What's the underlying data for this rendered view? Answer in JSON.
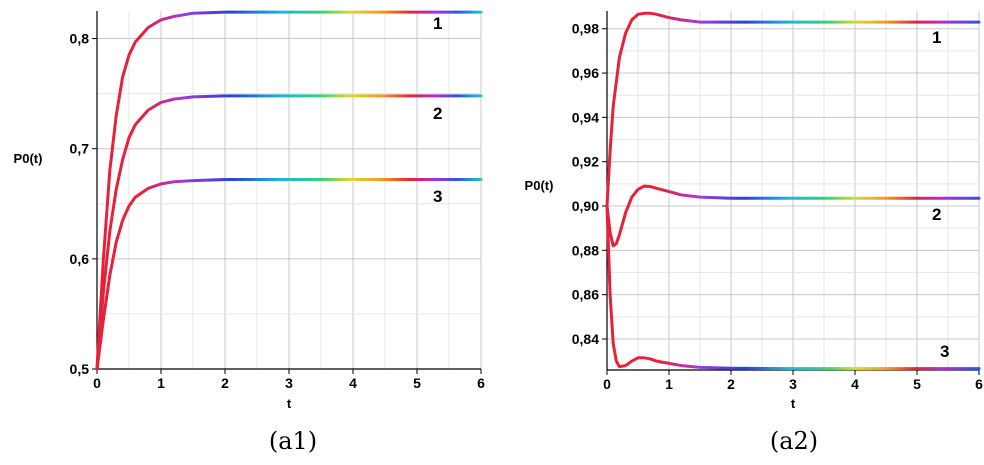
{
  "chart_data": [
    {
      "type": "line",
      "xlabel": "t",
      "ylabel": "P0(t)",
      "caption": "(a1)",
      "xlim": [
        0,
        6
      ],
      "ylim": [
        0.5,
        0.825
      ],
      "x_ticks": [
        "0",
        "1",
        "2",
        "3",
        "4",
        "5",
        "6"
      ],
      "y_ticks": [
        "0,5",
        "0,6",
        "0,7",
        "0,8"
      ],
      "y_tick_values": [
        0.5,
        0.6,
        0.7,
        0.8
      ],
      "grid": true,
      "series": [
        {
          "label": "1",
          "x": [
            0,
            0.1,
            0.2,
            0.3,
            0.4,
            0.5,
            0.6,
            0.8,
            1.0,
            1.2,
            1.5,
            2.0,
            3.0,
            4.0,
            5.0,
            6.0
          ],
          "y": [
            0.5,
            0.6,
            0.68,
            0.73,
            0.765,
            0.785,
            0.797,
            0.81,
            0.817,
            0.82,
            0.823,
            0.824,
            0.824,
            0.824,
            0.824,
            0.824
          ]
        },
        {
          "label": "2",
          "x": [
            0,
            0.1,
            0.2,
            0.3,
            0.4,
            0.5,
            0.6,
            0.8,
            1.0,
            1.2,
            1.5,
            2.0,
            3.0,
            4.0,
            5.0,
            6.0
          ],
          "y": [
            0.5,
            0.57,
            0.625,
            0.663,
            0.69,
            0.71,
            0.722,
            0.735,
            0.742,
            0.745,
            0.747,
            0.748,
            0.748,
            0.748,
            0.748,
            0.748
          ]
        },
        {
          "label": "3",
          "x": [
            0,
            0.1,
            0.2,
            0.3,
            0.4,
            0.5,
            0.6,
            0.8,
            1.0,
            1.2,
            1.5,
            2.0,
            3.0,
            4.0,
            5.0,
            6.0
          ],
          "y": [
            0.5,
            0.545,
            0.585,
            0.615,
            0.635,
            0.648,
            0.656,
            0.664,
            0.668,
            0.67,
            0.671,
            0.672,
            0.672,
            0.672,
            0.672,
            0.672
          ]
        }
      ]
    },
    {
      "type": "line",
      "xlabel": "t",
      "ylabel": "P0(t)",
      "caption": "(a2)",
      "xlim": [
        0,
        6
      ],
      "ylim": [
        0.826,
        0.988
      ],
      "x_ticks": [
        "0",
        "1",
        "2",
        "3",
        "4",
        "5",
        "6"
      ],
      "y_ticks": [
        "0,84",
        "0,86",
        "0,88",
        "0,90",
        "0,92",
        "0,94",
        "0,96",
        "0,98"
      ],
      "y_tick_values": [
        0.84,
        0.86,
        0.88,
        0.9,
        0.92,
        0.94,
        0.96,
        0.98
      ],
      "grid": true,
      "series": [
        {
          "label": "1",
          "x": [
            0,
            0.05,
            0.1,
            0.2,
            0.3,
            0.4,
            0.5,
            0.6,
            0.7,
            0.8,
            1.0,
            1.2,
            1.5,
            2.0,
            3.0,
            4.0,
            5.0,
            6.0
          ],
          "y": [
            0.9,
            0.925,
            0.945,
            0.967,
            0.978,
            0.984,
            0.9865,
            0.987,
            0.987,
            0.9865,
            0.985,
            0.984,
            0.983,
            0.983,
            0.983,
            0.983,
            0.983,
            0.983
          ]
        },
        {
          "label": "2",
          "x": [
            0,
            0.05,
            0.1,
            0.15,
            0.2,
            0.3,
            0.4,
            0.5,
            0.6,
            0.7,
            0.8,
            1.0,
            1.2,
            1.5,
            2.0,
            3.0,
            4.0,
            5.0,
            6.0
          ],
          "y": [
            0.9,
            0.888,
            0.882,
            0.883,
            0.887,
            0.897,
            0.904,
            0.9075,
            0.909,
            0.9088,
            0.908,
            0.9065,
            0.905,
            0.904,
            0.9035,
            0.9035,
            0.9035,
            0.9035,
            0.9035
          ]
        },
        {
          "label": "3",
          "x": [
            0,
            0.05,
            0.1,
            0.15,
            0.2,
            0.3,
            0.4,
            0.5,
            0.6,
            0.7,
            0.8,
            1.0,
            1.2,
            1.5,
            2.0,
            3.0,
            4.0,
            5.0,
            6.0
          ],
          "y": [
            0.9,
            0.86,
            0.838,
            0.83,
            0.8275,
            0.828,
            0.83,
            0.8315,
            0.8315,
            0.831,
            0.83,
            0.829,
            0.828,
            0.8272,
            0.8268,
            0.8266,
            0.8266,
            0.8266,
            0.8266
          ]
        }
      ]
    }
  ]
}
